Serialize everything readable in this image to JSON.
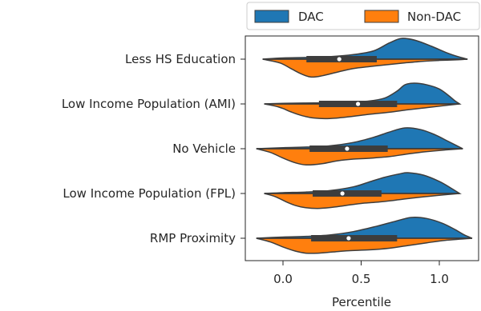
{
  "chart_data": {
    "type": "violin",
    "split": true,
    "title": "",
    "xlabel": "Percentile",
    "ylabel": "",
    "xlim": [
      -0.22,
      1.25
    ],
    "xticks": [
      0.0,
      0.5,
      1.0
    ],
    "xtick_labels": [
      "0.0",
      "0.5",
      "1.0"
    ],
    "grid": false,
    "legend_position": "top-right-outside",
    "series": [
      {
        "name": "DAC",
        "color": "#1f77b4"
      },
      {
        "name": "Non-DAC",
        "color": "#ff7f0e"
      }
    ],
    "categories": [
      "Less HS Education",
      "Low Income Population (AMI)",
      "No Vehicle",
      "Low Income Population (FPL)",
      "RMP Proximity"
    ],
    "box_color": "#3d3d3d",
    "median_color": "#ffffff",
    "violins": [
      {
        "category": "Less HS Education",
        "range": [
          -0.13,
          1.18
        ],
        "q1": 0.15,
        "median": 0.36,
        "q3": 0.6,
        "dac_profile": [
          [
            -0.13,
            0
          ],
          [
            0.0,
            0.06
          ],
          [
            0.15,
            0.08
          ],
          [
            0.3,
            0.12
          ],
          [
            0.45,
            0.22
          ],
          [
            0.58,
            0.4
          ],
          [
            0.68,
            0.78
          ],
          [
            0.76,
            1.0
          ],
          [
            0.85,
            0.9
          ],
          [
            0.95,
            0.62
          ],
          [
            1.05,
            0.3
          ],
          [
            1.12,
            0.12
          ],
          [
            1.18,
            0
          ]
        ],
        "nondac_profile": [
          [
            -0.13,
            0
          ],
          [
            -0.02,
            0.18
          ],
          [
            0.05,
            0.45
          ],
          [
            0.12,
            0.72
          ],
          [
            0.18,
            0.86
          ],
          [
            0.25,
            0.8
          ],
          [
            0.35,
            0.62
          ],
          [
            0.45,
            0.45
          ],
          [
            0.55,
            0.36
          ],
          [
            0.65,
            0.28
          ],
          [
            0.78,
            0.18
          ],
          [
            0.9,
            0.1
          ],
          [
            1.0,
            0.06
          ],
          [
            1.12,
            0.03
          ],
          [
            1.18,
            0
          ]
        ]
      },
      {
        "category": "Low Income Population (AMI)",
        "range": [
          -0.12,
          1.13
        ],
        "q1": 0.23,
        "median": 0.48,
        "q3": 0.73,
        "dac_profile": [
          [
            -0.12,
            0
          ],
          [
            0.0,
            0.03
          ],
          [
            0.2,
            0.05
          ],
          [
            0.4,
            0.08
          ],
          [
            0.55,
            0.14
          ],
          [
            0.65,
            0.28
          ],
          [
            0.73,
            0.62
          ],
          [
            0.78,
            0.92
          ],
          [
            0.84,
            1.0
          ],
          [
            0.92,
            0.92
          ],
          [
            1.0,
            0.72
          ],
          [
            1.06,
            0.4
          ],
          [
            1.1,
            0.15
          ],
          [
            1.13,
            0
          ]
        ],
        "nondac_profile": [
          [
            -0.12,
            0
          ],
          [
            -0.05,
            0.1
          ],
          [
            0.0,
            0.22
          ],
          [
            0.05,
            0.38
          ],
          [
            0.12,
            0.56
          ],
          [
            0.2,
            0.68
          ],
          [
            0.3,
            0.7
          ],
          [
            0.42,
            0.62
          ],
          [
            0.55,
            0.5
          ],
          [
            0.68,
            0.4
          ],
          [
            0.8,
            0.28
          ],
          [
            0.92,
            0.18
          ],
          [
            1.03,
            0.08
          ],
          [
            1.13,
            0
          ]
        ]
      },
      {
        "category": "No Vehicle",
        "range": [
          -0.17,
          1.15
        ],
        "q1": 0.17,
        "median": 0.41,
        "q3": 0.67,
        "dac_profile": [
          [
            -0.17,
            0
          ],
          [
            0.0,
            0.05
          ],
          [
            0.15,
            0.08
          ],
          [
            0.3,
            0.14
          ],
          [
            0.45,
            0.3
          ],
          [
            0.58,
            0.55
          ],
          [
            0.68,
            0.8
          ],
          [
            0.78,
            1.0
          ],
          [
            0.88,
            0.92
          ],
          [
            0.97,
            0.68
          ],
          [
            1.05,
            0.38
          ],
          [
            1.11,
            0.15
          ],
          [
            1.15,
            0
          ]
        ],
        "nondac_profile": [
          [
            -0.17,
            0
          ],
          [
            -0.08,
            0.18
          ],
          [
            0.0,
            0.45
          ],
          [
            0.08,
            0.68
          ],
          [
            0.15,
            0.78
          ],
          [
            0.25,
            0.72
          ],
          [
            0.35,
            0.58
          ],
          [
            0.45,
            0.5
          ],
          [
            0.55,
            0.46
          ],
          [
            0.68,
            0.38
          ],
          [
            0.8,
            0.25
          ],
          [
            0.92,
            0.14
          ],
          [
            1.04,
            0.06
          ],
          [
            1.15,
            0
          ]
        ]
      },
      {
        "category": "Low Income Population (FPL)",
        "range": [
          -0.12,
          1.13
        ],
        "q1": 0.19,
        "median": 0.38,
        "q3": 0.63,
        "dac_profile": [
          [
            -0.12,
            0
          ],
          [
            0.0,
            0.04
          ],
          [
            0.15,
            0.07
          ],
          [
            0.3,
            0.14
          ],
          [
            0.45,
            0.32
          ],
          [
            0.55,
            0.55
          ],
          [
            0.65,
            0.78
          ],
          [
            0.75,
            0.95
          ],
          [
            0.8,
            1.0
          ],
          [
            0.9,
            0.88
          ],
          [
            1.0,
            0.58
          ],
          [
            1.07,
            0.28
          ],
          [
            1.13,
            0
          ]
        ],
        "nondac_profile": [
          [
            -0.12,
            0
          ],
          [
            -0.05,
            0.15
          ],
          [
            0.02,
            0.4
          ],
          [
            0.08,
            0.58
          ],
          [
            0.14,
            0.68
          ],
          [
            0.22,
            0.72
          ],
          [
            0.3,
            0.68
          ],
          [
            0.4,
            0.58
          ],
          [
            0.5,
            0.48
          ],
          [
            0.6,
            0.42
          ],
          [
            0.72,
            0.32
          ],
          [
            0.85,
            0.2
          ],
          [
            0.98,
            0.1
          ],
          [
            1.13,
            0
          ]
        ]
      },
      {
        "category": "RMP Proximity",
        "range": [
          -0.17,
          1.21
        ],
        "q1": 0.18,
        "median": 0.42,
        "q3": 0.73,
        "dac_profile": [
          [
            -0.17,
            0
          ],
          [
            0.0,
            0.06
          ],
          [
            0.15,
            0.09
          ],
          [
            0.3,
            0.16
          ],
          [
            0.45,
            0.32
          ],
          [
            0.6,
            0.58
          ],
          [
            0.72,
            0.82
          ],
          [
            0.82,
            1.0
          ],
          [
            0.92,
            0.95
          ],
          [
            1.02,
            0.72
          ],
          [
            1.1,
            0.42
          ],
          [
            1.16,
            0.16
          ],
          [
            1.21,
            0
          ]
        ],
        "nondac_profile": [
          [
            -0.17,
            0
          ],
          [
            -0.08,
            0.18
          ],
          [
            0.0,
            0.42
          ],
          [
            0.08,
            0.62
          ],
          [
            0.15,
            0.72
          ],
          [
            0.22,
            0.72
          ],
          [
            0.32,
            0.66
          ],
          [
            0.42,
            0.6
          ],
          [
            0.55,
            0.56
          ],
          [
            0.68,
            0.48
          ],
          [
            0.8,
            0.35
          ],
          [
            0.92,
            0.22
          ],
          [
            1.04,
            0.1
          ],
          [
            1.21,
            0
          ]
        ]
      }
    ]
  }
}
